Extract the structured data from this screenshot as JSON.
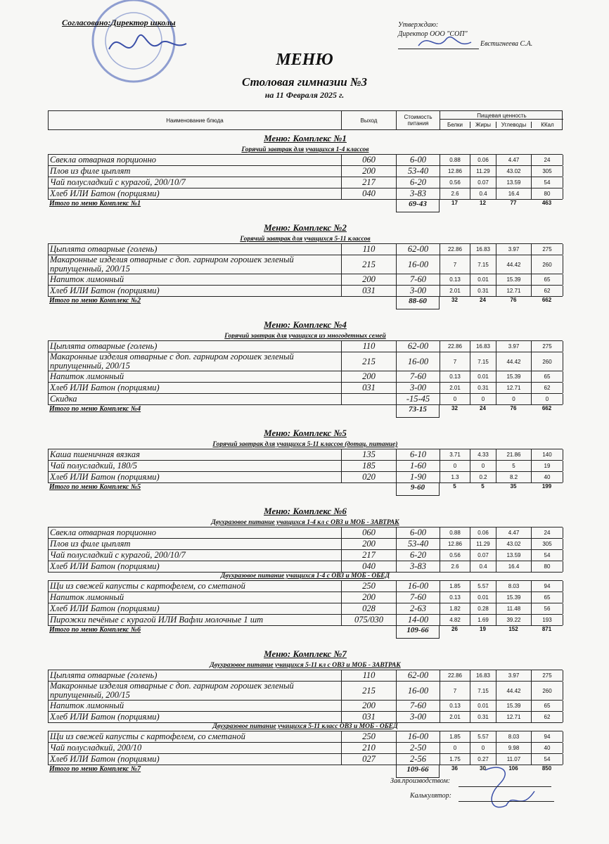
{
  "header": {
    "agreed": "Согласовано:Директор школы",
    "approve": "Утверждаю:",
    "approver_title": "Директор ООО \"СОП\"",
    "approver_name": "Евстигнеева С.А.",
    "title": "МЕНЮ",
    "subtitle": "Столовая гимназии №3",
    "date": "на 11 Февраля 2025 г."
  },
  "table_header": {
    "name": "Наименование блюда",
    "yield": "Выход",
    "price": "Стоимость питания",
    "nutrition": "Пищевая ценность",
    "protein": "Белки",
    "fat": "Жиры",
    "carbs": "Углеводы",
    "kcal": "ККал"
  },
  "sections": [
    {
      "title": "Меню: Комплекс №1",
      "groups": [
        {
          "title": "Горячий завтрак для учащихся 1-4 классов",
          "rows": [
            [
              "Свекла отварная порционно",
              "060",
              "6-00",
              "0.88",
              "0.06",
              "4.47",
              "24"
            ],
            [
              "Плов из филе цыплят",
              "200",
              "53-40",
              "12.86",
              "11.29",
              "43.02",
              "305"
            ],
            [
              "Чай полусладкий с курагой, 200/10/7",
              "217",
              "6-20",
              "0.56",
              "0.07",
              "13.59",
              "54"
            ],
            [
              "Хлеб ИЛИ Батон (порциями)",
              "040",
              "3-83",
              "2.6",
              "0.4",
              "16.4",
              "80"
            ]
          ]
        }
      ],
      "total": [
        "Итого по меню Комплекс №1",
        "69-43",
        "17",
        "12",
        "77",
        "463"
      ]
    },
    {
      "title": "Меню: Комплекс №2",
      "groups": [
        {
          "title": "Горячий завтрак для учащихся 5-11 классов",
          "rows": [
            [
              "Цыплята отварные (голень)",
              "110",
              "62-00",
              "22.86",
              "16.83",
              "3.97",
              "275"
            ],
            [
              "Макаронные изделия отварные с доп. гарниром  горошек зеленый припущенный, 200/15",
              "215",
              "16-00",
              "7",
              "7.15",
              "44.42",
              "260"
            ],
            [
              "Напиток лимонный",
              "200",
              "7-60",
              "0.13",
              "0.01",
              "15.39",
              "65"
            ],
            [
              "Хлеб ИЛИ Батон (порциями)",
              "031",
              "3-00",
              "2.01",
              "0.31",
              "12.71",
              "62"
            ]
          ]
        }
      ],
      "total": [
        "Итого по меню Комплекс №2",
        "88-60",
        "32",
        "24",
        "76",
        "662"
      ]
    },
    {
      "title": "Меню: Комплекс №4",
      "groups": [
        {
          "title": "Горячий завтрак для учащихся из многодетных семей",
          "rows": [
            [
              "Цыплята отварные (голень)",
              "110",
              "62-00",
              "22.86",
              "16.83",
              "3.97",
              "275"
            ],
            [
              "Макаронные изделия отварные с доп. гарниром  горошек зеленый припущенный, 200/15",
              "215",
              "16-00",
              "7",
              "7.15",
              "44.42",
              "260"
            ],
            [
              "Напиток лимонный",
              "200",
              "7-60",
              "0.13",
              "0.01",
              "15.39",
              "65"
            ],
            [
              "Хлеб ИЛИ Батон (порциями)",
              "031",
              "3-00",
              "2.01",
              "0.31",
              "12.71",
              "62"
            ],
            [
              "Скидка",
              null,
              "-15-45",
              "0",
              "0",
              "0",
              "0"
            ]
          ]
        }
      ],
      "total": [
        "Итого по меню Комплекс №4",
        "73-15",
        "32",
        "24",
        "76",
        "662"
      ]
    },
    {
      "title": "Меню: Комплекс №5",
      "groups": [
        {
          "title": "Горячий завтрак для учащихся 5-11 классов (дотац. питание)",
          "rows": [
            [
              "Каша пшеничная вязкая",
              "135",
              "6-10",
              "3.71",
              "4.33",
              "21.86",
              "140"
            ],
            [
              "Чай полусладкий, 180/5",
              "185",
              "1-60",
              "0",
              "0",
              "5",
              "19"
            ],
            [
              "Хлеб ИЛИ Батон (порциями)",
              "020",
              "1-90",
              "1.3",
              "0.2",
              "8.2",
              "40"
            ]
          ]
        }
      ],
      "total": [
        "Итого по меню Комплекс №5",
        "9-60",
        "5",
        "5",
        "35",
        "199"
      ]
    },
    {
      "title": "Меню: Комплекс №6",
      "groups": [
        {
          "title": "Двухразовое питание учащихся 1-4 кл с ОВЗ и МОБ - ЗАВТРАК",
          "rows": [
            [
              "Свекла отварная порционно",
              "060",
              "6-00",
              "0.88",
              "0.06",
              "4.47",
              "24"
            ],
            [
              "Плов из филе цыплят",
              "200",
              "53-40",
              "12.86",
              "11.29",
              "43.02",
              "305"
            ],
            [
              "Чай полусладкий с курагой, 200/10/7",
              "217",
              "6-20",
              "0.56",
              "0.07",
              "13.59",
              "54"
            ],
            [
              "Хлеб ИЛИ Батон (порциями)",
              "040",
              "3-83",
              "2.6",
              "0.4",
              "16.4",
              "80"
            ]
          ]
        },
        {
          "title": "Двухразовое питание учащихся 1-4 с ОВЗ и МОБ - ОБЕД",
          "rows": [
            [
              "Щи из свежей капусты с картофелем, со сметаной",
              "250",
              "16-00",
              "1.85",
              "5.57",
              "8.03",
              "94"
            ],
            [
              "Напиток лимонный",
              "200",
              "7-60",
              "0.13",
              "0.01",
              "15.39",
              "65"
            ],
            [
              "Хлеб ИЛИ Батон (порциями)",
              "028",
              "2-63",
              "1.82",
              "0.28",
              "11.48",
              "56"
            ],
            [
              "Пирожки печёные с курагой ИЛИ Вафли молочные 1 шт",
              "075/030",
              "14-00",
              "4.82",
              "1.69",
              "39.22",
              "193"
            ]
          ]
        }
      ],
      "total": [
        "Итого по меню Комплекс №6",
        "109-66",
        "26",
        "19",
        "152",
        "871"
      ]
    },
    {
      "title": "Меню: Комплекс №7",
      "groups": [
        {
          "title": "Двухразовое питание учащихся 5-11 кл с  ОВЗ и МОБ - ЗАВТРАК",
          "rows": [
            [
              "Цыплята отварные (голень)",
              "110",
              "62-00",
              "22.86",
              "16.83",
              "3.97",
              "275"
            ],
            [
              "Макаронные изделия отварные с доп. гарниром  горошек зеленый припущенный, 200/15",
              "215",
              "16-00",
              "7",
              "7.15",
              "44.42",
              "260"
            ],
            [
              "Напиток лимонный",
              "200",
              "7-60",
              "0.13",
              "0.01",
              "15.39",
              "65"
            ],
            [
              "Хлеб ИЛИ Батон (порциями)",
              "031",
              "3-00",
              "2.01",
              "0.31",
              "12.71",
              "62"
            ]
          ]
        },
        {
          "title": "Двухразовое питание учащихся 5-11 класс ОВЗ и МОБ - ОБЕД",
          "rows": [
            [
              "Щи из свежей капусты с картофелем, со сметаной",
              "250",
              "16-00",
              "1.85",
              "5.57",
              "8.03",
              "94"
            ],
            [
              "Чай полусладкий, 200/10",
              "210",
              "2-50",
              "0",
              "0",
              "9.98",
              "40"
            ],
            [
              "Хлеб ИЛИ Батон (порциями)",
              "027",
              "2-56",
              "1.75",
              "0.27",
              "11.07",
              "54"
            ]
          ]
        }
      ],
      "total": [
        "Итого по меню Комплекс №7",
        "109-66",
        "36",
        "30",
        "106",
        "850"
      ]
    }
  ],
  "footer": {
    "production": "Зав.производством:",
    "calculator": "Калькулятор:"
  }
}
